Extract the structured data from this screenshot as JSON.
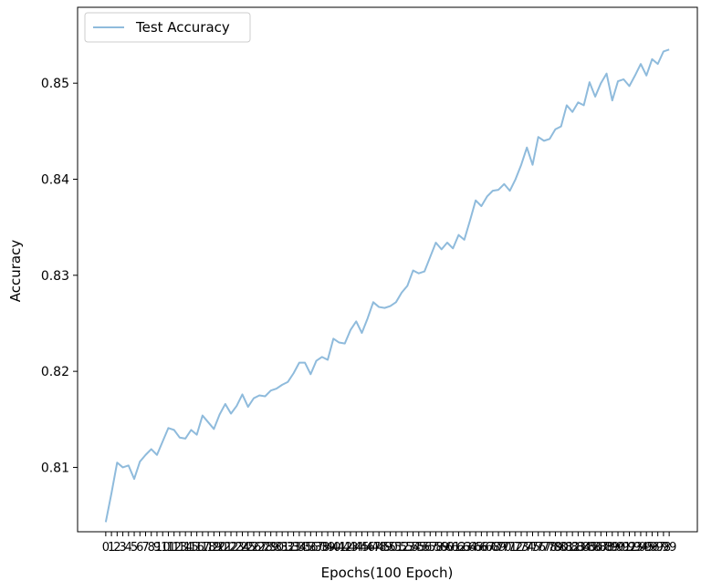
{
  "chart_data": {
    "type": "line",
    "title": "",
    "xlabel": "Epochs(100 Epoch)",
    "ylabel": "Accuracy",
    "ylim": [
      0.8033,
      0.8579
    ],
    "xlim": [
      -4.95,
      103.95
    ],
    "grid": false,
    "legend_position": "top-left",
    "yticks": [
      0.81,
      0.82,
      0.83,
      0.84,
      0.85
    ],
    "ytick_labels": [
      "0.81",
      "0.82",
      "0.83",
      "0.84",
      "0.85"
    ],
    "x": [
      0,
      1,
      2,
      3,
      4,
      5,
      6,
      7,
      8,
      9,
      10,
      11,
      12,
      13,
      14,
      15,
      16,
      17,
      18,
      19,
      20,
      21,
      22,
      23,
      24,
      25,
      26,
      27,
      28,
      29,
      30,
      31,
      32,
      33,
      34,
      35,
      36,
      37,
      38,
      39,
      40,
      41,
      42,
      43,
      44,
      45,
      46,
      47,
      48,
      49,
      50,
      51,
      52,
      53,
      54,
      55,
      56,
      57,
      58,
      59,
      60,
      61,
      62,
      63,
      64,
      65,
      66,
      67,
      68,
      69,
      70,
      71,
      72,
      73,
      74,
      75,
      76,
      77,
      78,
      79,
      80,
      81,
      82,
      83,
      84,
      85,
      86,
      87,
      88,
      89,
      90,
      91,
      92,
      93,
      94,
      95,
      96,
      97,
      98,
      99
    ],
    "series": [
      {
        "name": "Test Accuracy",
        "color": "#8fbbdc",
        "values": [
          0.8043,
          0.8073,
          0.8105,
          0.81,
          0.8102,
          0.8088,
          0.8106,
          0.8113,
          0.8119,
          0.8113,
          0.8127,
          0.8141,
          0.8139,
          0.8131,
          0.813,
          0.8139,
          0.8134,
          0.8154,
          0.8147,
          0.814,
          0.8155,
          0.8166,
          0.8156,
          0.8164,
          0.8176,
          0.8163,
          0.8172,
          0.8175,
          0.8174,
          0.818,
          0.8182,
          0.8186,
          0.8189,
          0.8198,
          0.8209,
          0.8209,
          0.8197,
          0.8211,
          0.8215,
          0.8212,
          0.8234,
          0.823,
          0.8229,
          0.8243,
          0.8252,
          0.824,
          0.8255,
          0.8272,
          0.8267,
          0.8266,
          0.8268,
          0.8272,
          0.8282,
          0.8289,
          0.8305,
          0.8302,
          0.8304,
          0.8319,
          0.8334,
          0.8327,
          0.8334,
          0.8328,
          0.8342,
          0.8337,
          0.8357,
          0.8378,
          0.8372,
          0.8382,
          0.8388,
          0.8389,
          0.8395,
          0.8388,
          0.84,
          0.8415,
          0.8433,
          0.8415,
          0.8444,
          0.844,
          0.8442,
          0.8452,
          0.8455,
          0.8477,
          0.847,
          0.848,
          0.8477,
          0.8501,
          0.8486,
          0.85,
          0.851,
          0.8482,
          0.8502,
          0.8504,
          0.8497,
          0.8508,
          0.852,
          0.8508,
          0.8525,
          0.852,
          0.8533,
          0.8535
        ]
      }
    ]
  }
}
